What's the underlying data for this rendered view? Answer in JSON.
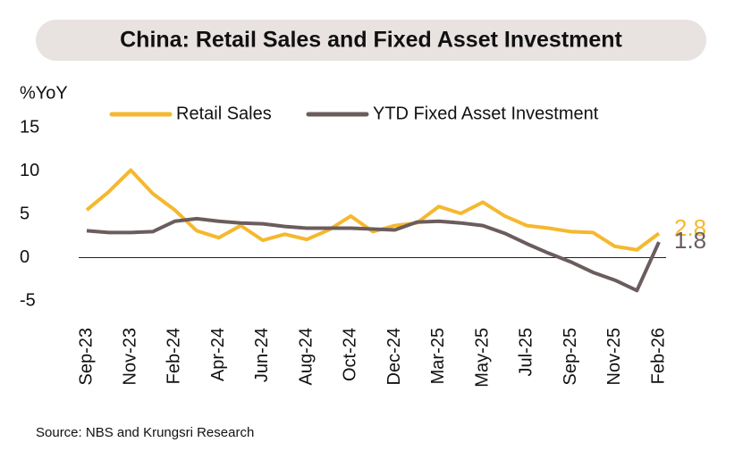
{
  "chart_data": {
    "type": "line",
    "title": "China: Retail Sales and Fixed Asset Investment",
    "y_label": "%YoY",
    "source": "Source: NBS and Krungsri Research",
    "categories": [
      "Sep-23",
      null,
      "Nov-23",
      null,
      "Feb-24",
      null,
      "Apr-24",
      null,
      "Jun-24",
      null,
      "Aug-24",
      null,
      "Oct-24",
      null,
      "Dec-24",
      null,
      "Mar-25",
      null,
      "May-25",
      null,
      "Jul-25",
      null,
      "Sep-25",
      null,
      "Nov-25",
      null,
      "Feb-26"
    ],
    "series": [
      {
        "name": "Retail Sales",
        "color": "#f5b82e",
        "values": [
          5.5,
          7.6,
          10.1,
          7.4,
          5.5,
          3.1,
          2.3,
          3.7,
          2.0,
          2.7,
          2.1,
          3.2,
          4.8,
          3.0,
          3.7,
          4.0,
          5.9,
          5.1,
          6.4,
          4.8,
          3.7,
          3.4,
          3.0,
          2.9,
          1.3,
          0.9,
          2.8
        ]
      },
      {
        "name": "YTD Fixed Asset Investment",
        "color": "#6b5d5d",
        "values": [
          3.1,
          2.9,
          2.9,
          3.0,
          4.2,
          4.5,
          4.2,
          4.0,
          3.9,
          3.6,
          3.4,
          3.4,
          3.4,
          3.3,
          3.2,
          4.1,
          4.2,
          4.0,
          3.7,
          2.8,
          1.6,
          0.5,
          -0.5,
          -1.7,
          -2.6,
          -3.8,
          1.8
        ]
      }
    ],
    "ylim": [
      -5,
      15
    ],
    "yticks": [
      -5,
      0,
      5,
      10,
      15
    ],
    "grid": false,
    "end_labels": true
  }
}
